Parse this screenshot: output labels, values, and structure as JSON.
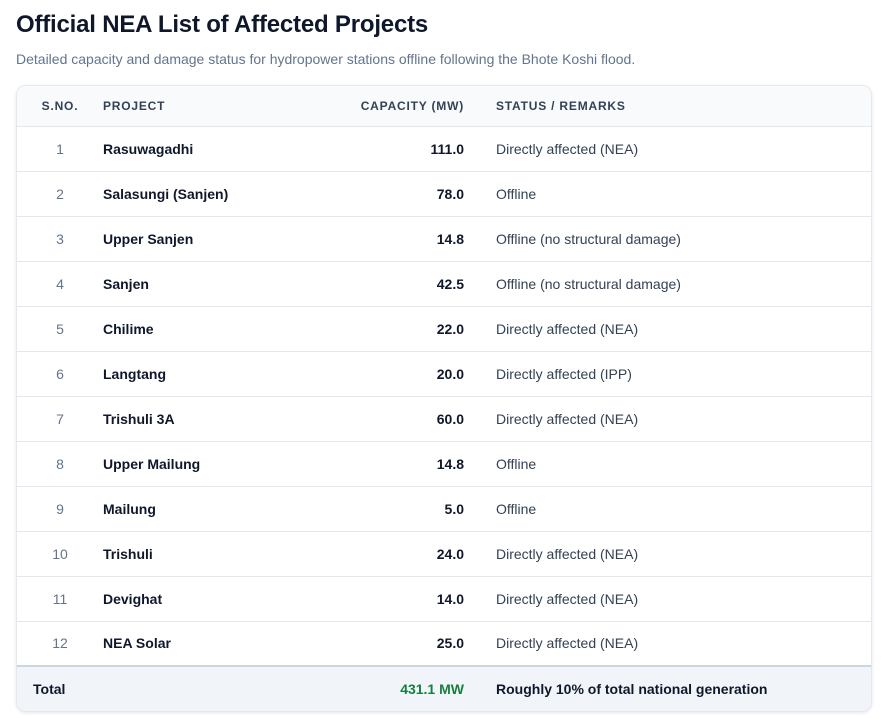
{
  "header": {
    "title": "Official NEA List of Affected Projects",
    "subtitle": "Detailed capacity and damage status for hydropower stations offline following the Bhote Koshi flood."
  },
  "table": {
    "columns": {
      "sno": "S.NO.",
      "project": "PROJECT",
      "capacity": "CAPACITY (MW)",
      "status": "STATUS / REMARKS"
    },
    "rows": [
      {
        "sno": "1",
        "project": "Rasuwagadhi",
        "capacity": "111.0",
        "status": "Directly affected (NEA)"
      },
      {
        "sno": "2",
        "project": "Salasungi (Sanjen)",
        "capacity": "78.0",
        "status": "Offline"
      },
      {
        "sno": "3",
        "project": "Upper Sanjen",
        "capacity": "14.8",
        "status": "Offline (no structural damage)"
      },
      {
        "sno": "4",
        "project": "Sanjen",
        "capacity": "42.5",
        "status": "Offline (no structural damage)"
      },
      {
        "sno": "5",
        "project": "Chilime",
        "capacity": "22.0",
        "status": "Directly affected (NEA)"
      },
      {
        "sno": "6",
        "project": "Langtang",
        "capacity": "20.0",
        "status": "Directly affected (IPP)"
      },
      {
        "sno": "7",
        "project": "Trishuli 3A",
        "capacity": "60.0",
        "status": "Directly affected (NEA)"
      },
      {
        "sno": "8",
        "project": "Upper Mailung",
        "capacity": "14.8",
        "status": "Offline"
      },
      {
        "sno": "9",
        "project": "Mailung",
        "capacity": "5.0",
        "status": "Offline"
      },
      {
        "sno": "10",
        "project": "Trishuli",
        "capacity": "24.0",
        "status": "Directly affected (NEA)"
      },
      {
        "sno": "11",
        "project": "Devighat",
        "capacity": "14.0",
        "status": "Directly affected (NEA)"
      },
      {
        "sno": "12",
        "project": "NEA Solar",
        "capacity": "25.0",
        "status": "Directly affected (NEA)"
      }
    ],
    "total": {
      "label": "Total",
      "capacity": "431.1 MW",
      "note": "Roughly 10% of total national generation"
    }
  },
  "colors": {
    "total_capacity": "#15803d",
    "header_bg": "#f8fafc",
    "footer_bg": "#f1f5f9",
    "border": "#e2e8f0"
  }
}
